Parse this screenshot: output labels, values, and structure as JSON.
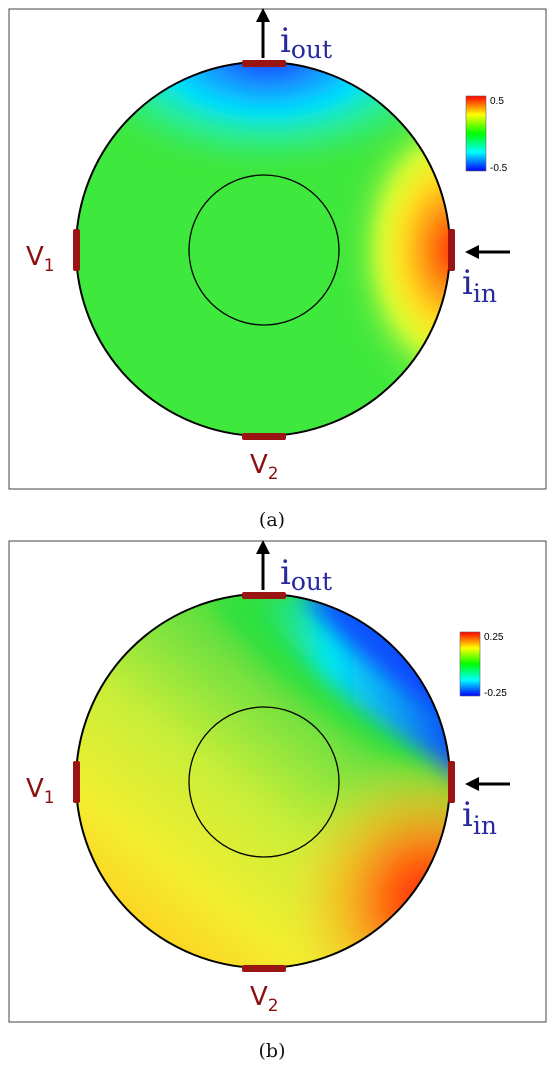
{
  "panels": [
    {
      "id": "a",
      "caption": "(a)",
      "colorbar": {
        "max_label": "0.5",
        "min_label": "-0.5"
      },
      "electrodes": {
        "v1": {
          "label": "V",
          "sub": "1"
        },
        "v2": {
          "label": "V",
          "sub": "2"
        },
        "iout": {
          "label": "i",
          "sub": "out"
        },
        "iin": {
          "label": "i",
          "sub": "in"
        }
      }
    },
    {
      "id": "b",
      "caption": "(b)",
      "colorbar": {
        "max_label": "0.25",
        "min_label": "-0.25"
      },
      "electrodes": {
        "v1": {
          "label": "V",
          "sub": "1"
        },
        "v2": {
          "label": "V",
          "sub": "2"
        },
        "iout": {
          "label": "i",
          "sub": "out"
        },
        "iin": {
          "label": "i",
          "sub": "in"
        }
      }
    }
  ],
  "colors": {
    "electrode": "#9b1414",
    "current_label": "#2a2aa0",
    "voltage_label": "#8b1010",
    "colormap": [
      "#0000ff",
      "#00ffff",
      "#00ff00",
      "#ffff00",
      "#ff0000"
    ]
  }
}
